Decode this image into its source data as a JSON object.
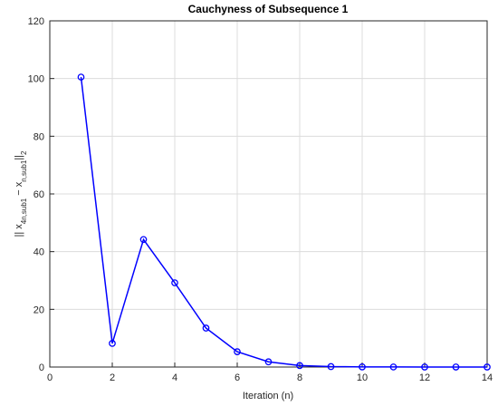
{
  "chart_data": {
    "type": "line",
    "title": "Cauchyness of Subsequence 1",
    "x_label": "Iteration (n)",
    "y_label": [
      "|| x",
      "4n,sub1",
      " − x",
      "n,sub1",
      "||",
      "2"
    ],
    "x": [
      1,
      2,
      3,
      4,
      5,
      6,
      7,
      8,
      9,
      10,
      11,
      12,
      13,
      14
    ],
    "series": [
      {
        "color": "#0000ff",
        "values": [
          100.5,
          8.2,
          44.2,
          29.2,
          13.5,
          5.3,
          1.8,
          0.5,
          0.15,
          0.05,
          0.02,
          0.01,
          0.005,
          0.002
        ]
      }
    ],
    "xlim": [
      0,
      14
    ],
    "xticks": [
      0,
      2,
      4,
      6,
      8,
      10,
      12,
      14
    ],
    "ylim": [
      0,
      120
    ],
    "yticks": [
      0,
      20,
      40,
      60,
      80,
      100,
      120
    ],
    "grid": true
  }
}
